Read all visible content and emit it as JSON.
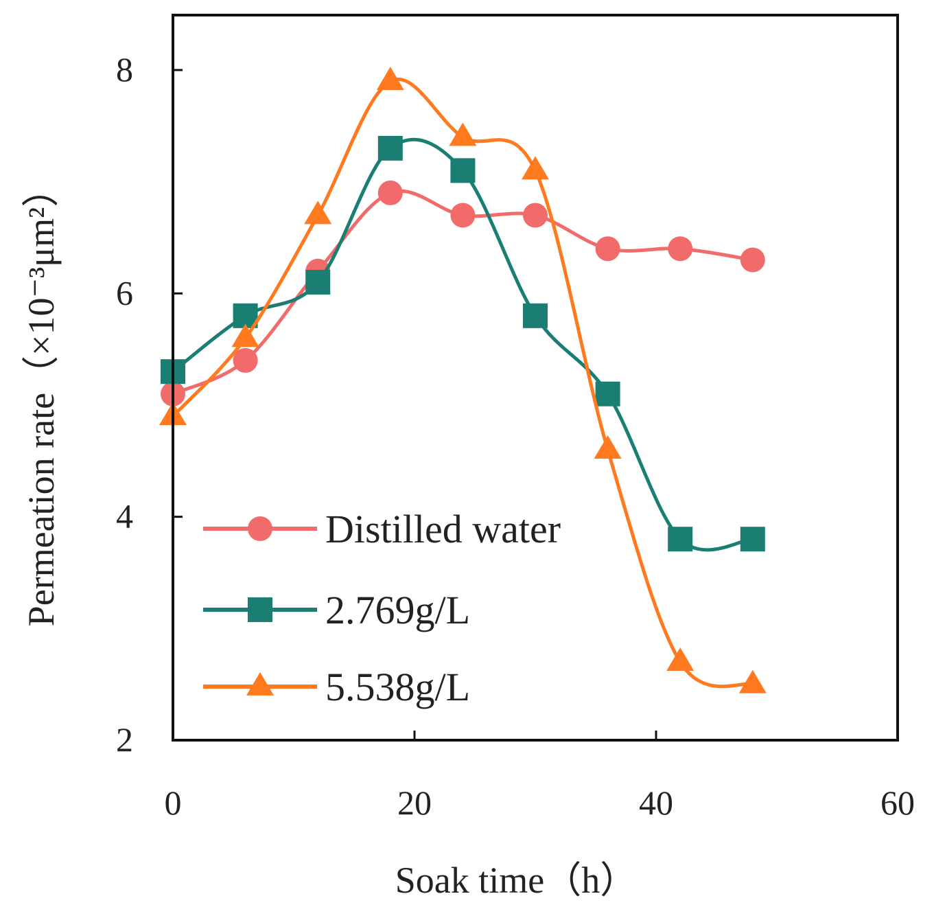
{
  "chart_data": {
    "type": "line",
    "xlabel": "Soak time（h）",
    "ylabel": "Permeation rate（×10⁻³μm²）",
    "xlim": [
      0,
      60
    ],
    "ylim": [
      2,
      8
    ],
    "xticks": [
      "0",
      "20",
      "40",
      "60"
    ],
    "yticks": [
      "2",
      "4",
      "6",
      "8"
    ],
    "x": [
      0,
      6,
      12,
      18,
      24,
      30,
      36,
      42,
      48
    ],
    "series": [
      {
        "name": "Distilled water",
        "marker": "circle",
        "color": "#f26b6b",
        "values": [
          5.1,
          5.4,
          6.2,
          6.9,
          6.7,
          6.7,
          6.4,
          6.4,
          6.3
        ]
      },
      {
        "name": "2.769g/L",
        "marker": "square",
        "color": "#1a7f72",
        "values": [
          5.3,
          5.8,
          6.1,
          7.3,
          7.1,
          5.8,
          5.1,
          3.8,
          3.8
        ]
      },
      {
        "name": "5.538g/L",
        "marker": "triangle",
        "color": "#ff7a1f",
        "values": [
          4.9,
          5.6,
          6.7,
          7.9,
          7.4,
          7.1,
          4.6,
          2.7,
          2.5
        ]
      }
    ],
    "grid": false,
    "legend_position": "bottom-left"
  }
}
